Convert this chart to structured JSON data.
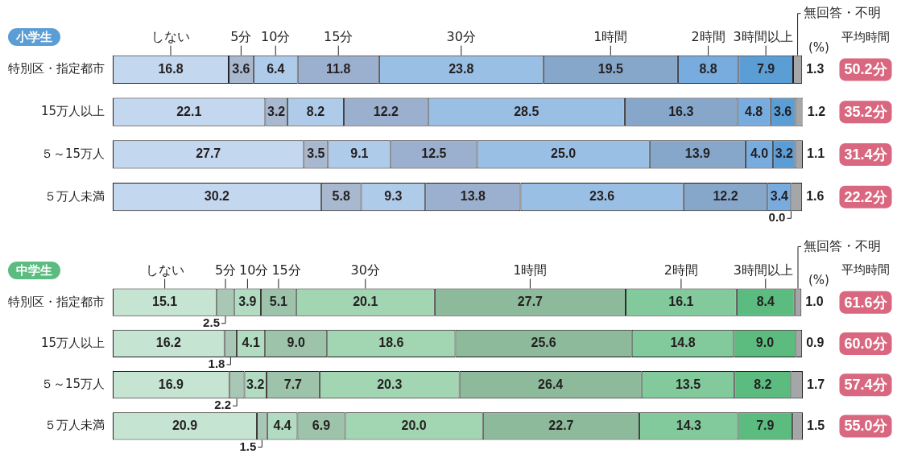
{
  "chart_data": [
    {
      "type": "bar",
      "orientation": "horizontal",
      "stacked": true,
      "title": "小学生",
      "categories": [
        "特別区・指定都市",
        "15万人以上",
        "５～15万人",
        "５万人未満"
      ],
      "xlim": [
        0,
        100
      ],
      "tick_labels": "y",
      "series": [
        {
          "name": "しない",
          "color": "#c3d7ee",
          "values": [
            16.8,
            22.1,
            27.7,
            30.2
          ],
          "value_labels": [
            "16.8",
            "22.1",
            "27.7",
            "30.2"
          ]
        },
        {
          "name": "5分",
          "color": "#a7b8cf",
          "values": [
            3.6,
            3.2,
            3.5,
            5.8
          ],
          "value_labels": [
            "3.6",
            "3.2",
            "3.5",
            "5.8"
          ]
        },
        {
          "name": "10分",
          "color": "#afcbea",
          "values": [
            6.4,
            8.2,
            9.1,
            9.3
          ],
          "value_labels": [
            "6.4",
            "8.2",
            "9.1",
            "9.3"
          ]
        },
        {
          "name": "15分",
          "color": "#9bb0ce",
          "values": [
            11.8,
            12.2,
            12.5,
            13.8
          ],
          "value_labels": [
            "11.8",
            "12.2",
            "12.5",
            "13.8"
          ]
        },
        {
          "name": "30分",
          "color": "#9abfe4",
          "values": [
            23.8,
            28.5,
            25.0,
            23.6
          ],
          "value_labels": [
            "23.8",
            "28.5",
            "25.0",
            "23.6"
          ]
        },
        {
          "name": "1時間",
          "color": "#86a6ca",
          "values": [
            19.5,
            16.3,
            13.9,
            12.2
          ],
          "value_labels": [
            "19.5",
            "16.3",
            "13.9",
            "12.2"
          ]
        },
        {
          "name": "2時間",
          "color": "#78acdf",
          "values": [
            8.8,
            4.8,
            4.0,
            3.4
          ],
          "value_labels": [
            "8.8",
            "4.8",
            "4.0",
            "3.4"
          ]
        },
        {
          "name": "3時間以上",
          "color": "#5b9dd5",
          "values": [
            7.9,
            3.6,
            3.2,
            0.0
          ],
          "value_labels": [
            "7.9",
            "3.6",
            "3.2",
            "0.0"
          ]
        },
        {
          "name": "無回答・不明",
          "color": "#a5a6a8",
          "values": [
            1.3,
            1.2,
            1.1,
            1.6
          ],
          "value_labels": [
            "1.3",
            "1.2",
            "1.1",
            "1.6"
          ]
        }
      ],
      "annotations": [
        "(%)",
        "平均時間",
        "50.2分",
        "35.2分",
        "31.4分",
        "22.2分"
      ]
    },
    {
      "type": "bar",
      "orientation": "horizontal",
      "stacked": true,
      "title": "中学生",
      "categories": [
        "特別区・指定都市",
        "15万人以上",
        "５～15万人",
        "５万人未満"
      ],
      "xlim": [
        0,
        100.1
      ],
      "tick_labels": "y",
      "series": [
        {
          "name": "しない",
          "color": "#c6e4d2",
          "values": [
            15.1,
            16.2,
            16.9,
            20.9
          ],
          "value_labels": [
            "15.1",
            "16.2",
            "16.9",
            "20.9"
          ]
        },
        {
          "name": "5分",
          "color": "#a8c8b5",
          "values": [
            2.5,
            1.8,
            2.2,
            1.5
          ],
          "value_labels": [
            "2.5",
            "1.8",
            "2.2",
            "1.5"
          ]
        },
        {
          "name": "10分",
          "color": "#b2dcc1",
          "values": [
            3.9,
            4.1,
            3.2,
            4.4
          ],
          "value_labels": [
            "3.9",
            "4.1",
            "3.2",
            "4.4"
          ]
        },
        {
          "name": "15分",
          "color": "#9ec3ab",
          "values": [
            5.1,
            9.0,
            7.7,
            6.9
          ],
          "value_labels": [
            "5.1",
            "9.0",
            "7.7",
            "6.9"
          ]
        },
        {
          "name": "30分",
          "color": "#a2d5b2",
          "values": [
            20.1,
            18.6,
            20.3,
            20.0
          ],
          "value_labels": [
            "20.1",
            "18.6",
            "20.3",
            "20.0"
          ]
        },
        {
          "name": "1時間",
          "color": "#8cba9b",
          "values": [
            27.7,
            25.6,
            26.4,
            22.7
          ],
          "value_labels": [
            "27.7",
            "25.6",
            "26.4",
            "22.7"
          ]
        },
        {
          "name": "2時間",
          "color": "#82ca9c",
          "values": [
            16.1,
            14.8,
            13.5,
            14.3
          ],
          "value_labels": [
            "16.1",
            "14.8",
            "13.5",
            "14.3"
          ]
        },
        {
          "name": "3時間以上",
          "color": "#5cbc80",
          "values": [
            8.4,
            9.0,
            8.2,
            7.9
          ],
          "value_labels": [
            "8.4",
            "9.0",
            "8.2",
            "7.9"
          ]
        },
        {
          "name": "無回答・不明",
          "color": "#a5a6a8",
          "values": [
            1.0,
            0.9,
            1.7,
            1.5
          ],
          "value_labels": [
            "1.0",
            "0.9",
            "1.7",
            "1.5"
          ]
        }
      ],
      "annotations": [
        "(%)",
        "平均時間",
        "61.6分",
        "60.0分",
        "57.4分",
        "55.0分"
      ]
    }
  ]
}
